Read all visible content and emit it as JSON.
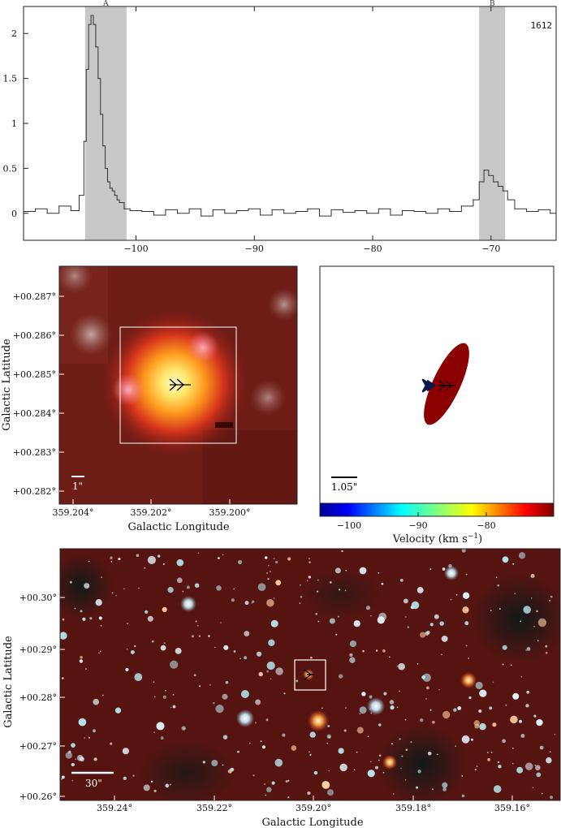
{
  "spectrum": {
    "chart_data": {
      "type": "line",
      "title": "",
      "annotation_tag": "1612",
      "xlabel": "",
      "ylabel": "",
      "xlim": [
        -109.5,
        -64.5
      ],
      "ylim": [
        -0.3,
        2.3
      ],
      "x_ticks": [
        -100,
        -90,
        -80,
        -70
      ],
      "x_tick_labels": [
        "−100",
        "−90",
        "−80",
        "−70"
      ],
      "y_ticks": [
        0,
        0.5,
        1,
        1.5,
        2
      ],
      "y_tick_labels": [
        "0",
        "0.5",
        "1",
        "1.5",
        "2"
      ],
      "grid": false,
      "shaded_regions": [
        {
          "label": "A",
          "x": [
            -104.3,
            -100.8
          ]
        },
        {
          "label": "B",
          "x": [
            -71.0,
            -68.8
          ]
        }
      ],
      "series": [
        {
          "x": [
            -109.5,
            -108.5,
            -107.5,
            -106.5,
            -105.5,
            -104.8,
            -104.4,
            -104.2,
            -104.0,
            -103.8,
            -103.6,
            -103.4,
            -103.2,
            -103.0,
            -102.8,
            -102.6,
            -102.4,
            -102.2,
            -102.0,
            -101.8,
            -101.6,
            -101.4,
            -101.0,
            -100.5,
            -99.5,
            -98.5,
            -97.5,
            -96.5,
            -95.5,
            -94.5,
            -93.5,
            -92.5,
            -91.5,
            -90.5,
            -89.5,
            -88.5,
            -87.5,
            -86.5,
            -85.5,
            -84.5,
            -83.5,
            -82.5,
            -81.5,
            -80.5,
            -79.5,
            -78.5,
            -77.5,
            -76.5,
            -75.5,
            -74.5,
            -73.5,
            -72.5,
            -71.5,
            -71.0,
            -70.6,
            -70.2,
            -69.8,
            -69.4,
            -69.0,
            -68.6,
            -68.0,
            -67.0,
            -66.0,
            -65.0,
            -64.5
          ],
          "values": [
            0.02,
            0.05,
            0.0,
            0.08,
            0.03,
            0.2,
            0.8,
            1.6,
            2.1,
            2.2,
            2.1,
            1.85,
            1.5,
            1.1,
            0.75,
            0.5,
            0.35,
            0.28,
            0.25,
            0.2,
            0.15,
            0.12,
            0.05,
            0.03,
            0.02,
            -0.02,
            0.04,
            0.0,
            0.05,
            -0.03,
            0.04,
            0.0,
            0.03,
            0.05,
            -0.02,
            0.04,
            0.0,
            0.02,
            0.05,
            -0.03,
            0.04,
            0.01,
            0.03,
            0.0,
            0.05,
            -0.02,
            0.03,
            0.02,
            0.0,
            0.05,
            0.02,
            0.08,
            0.15,
            0.35,
            0.48,
            0.42,
            0.35,
            0.3,
            0.25,
            0.15,
            0.05,
            0.02,
            0.04,
            0.0,
            0.02
          ]
        }
      ]
    }
  },
  "zoom_image": {
    "ylabel": "Galactic Latitude",
    "xlabel": "Galactic Longitude",
    "y_ticks": [
      "+00.287°",
      "+00.286°",
      "+00.285°",
      "+00.284°",
      "+00.283°",
      "+00.282°"
    ],
    "x_ticks": [
      "359.204°",
      "359.202°",
      "359.200°"
    ],
    "scalebar_label": "1\""
  },
  "velocity_map": {
    "scalebar_label": "1.05\"",
    "colorbar_label": "Velocity (km s",
    "colorbar_label_sup": "−1",
    "colorbar_label_end": ")",
    "colorbar_ticks": [
      "−100",
      "−90",
      "−80"
    ],
    "ellipse_color": "#8b0000",
    "marker_dark_color": "#0b1a4a"
  },
  "wide_image": {
    "ylabel": "Galactic Latitude",
    "xlabel": "Galactic Longitude",
    "y_ticks": [
      "+00.30°",
      "+00.29°",
      "+00.28°",
      "+00.27°",
      "+00.26°"
    ],
    "x_ticks": [
      "359.24°",
      "359.22°",
      "359.20°",
      "359.18°",
      "359.16°"
    ],
    "scalebar_label": "30\""
  }
}
